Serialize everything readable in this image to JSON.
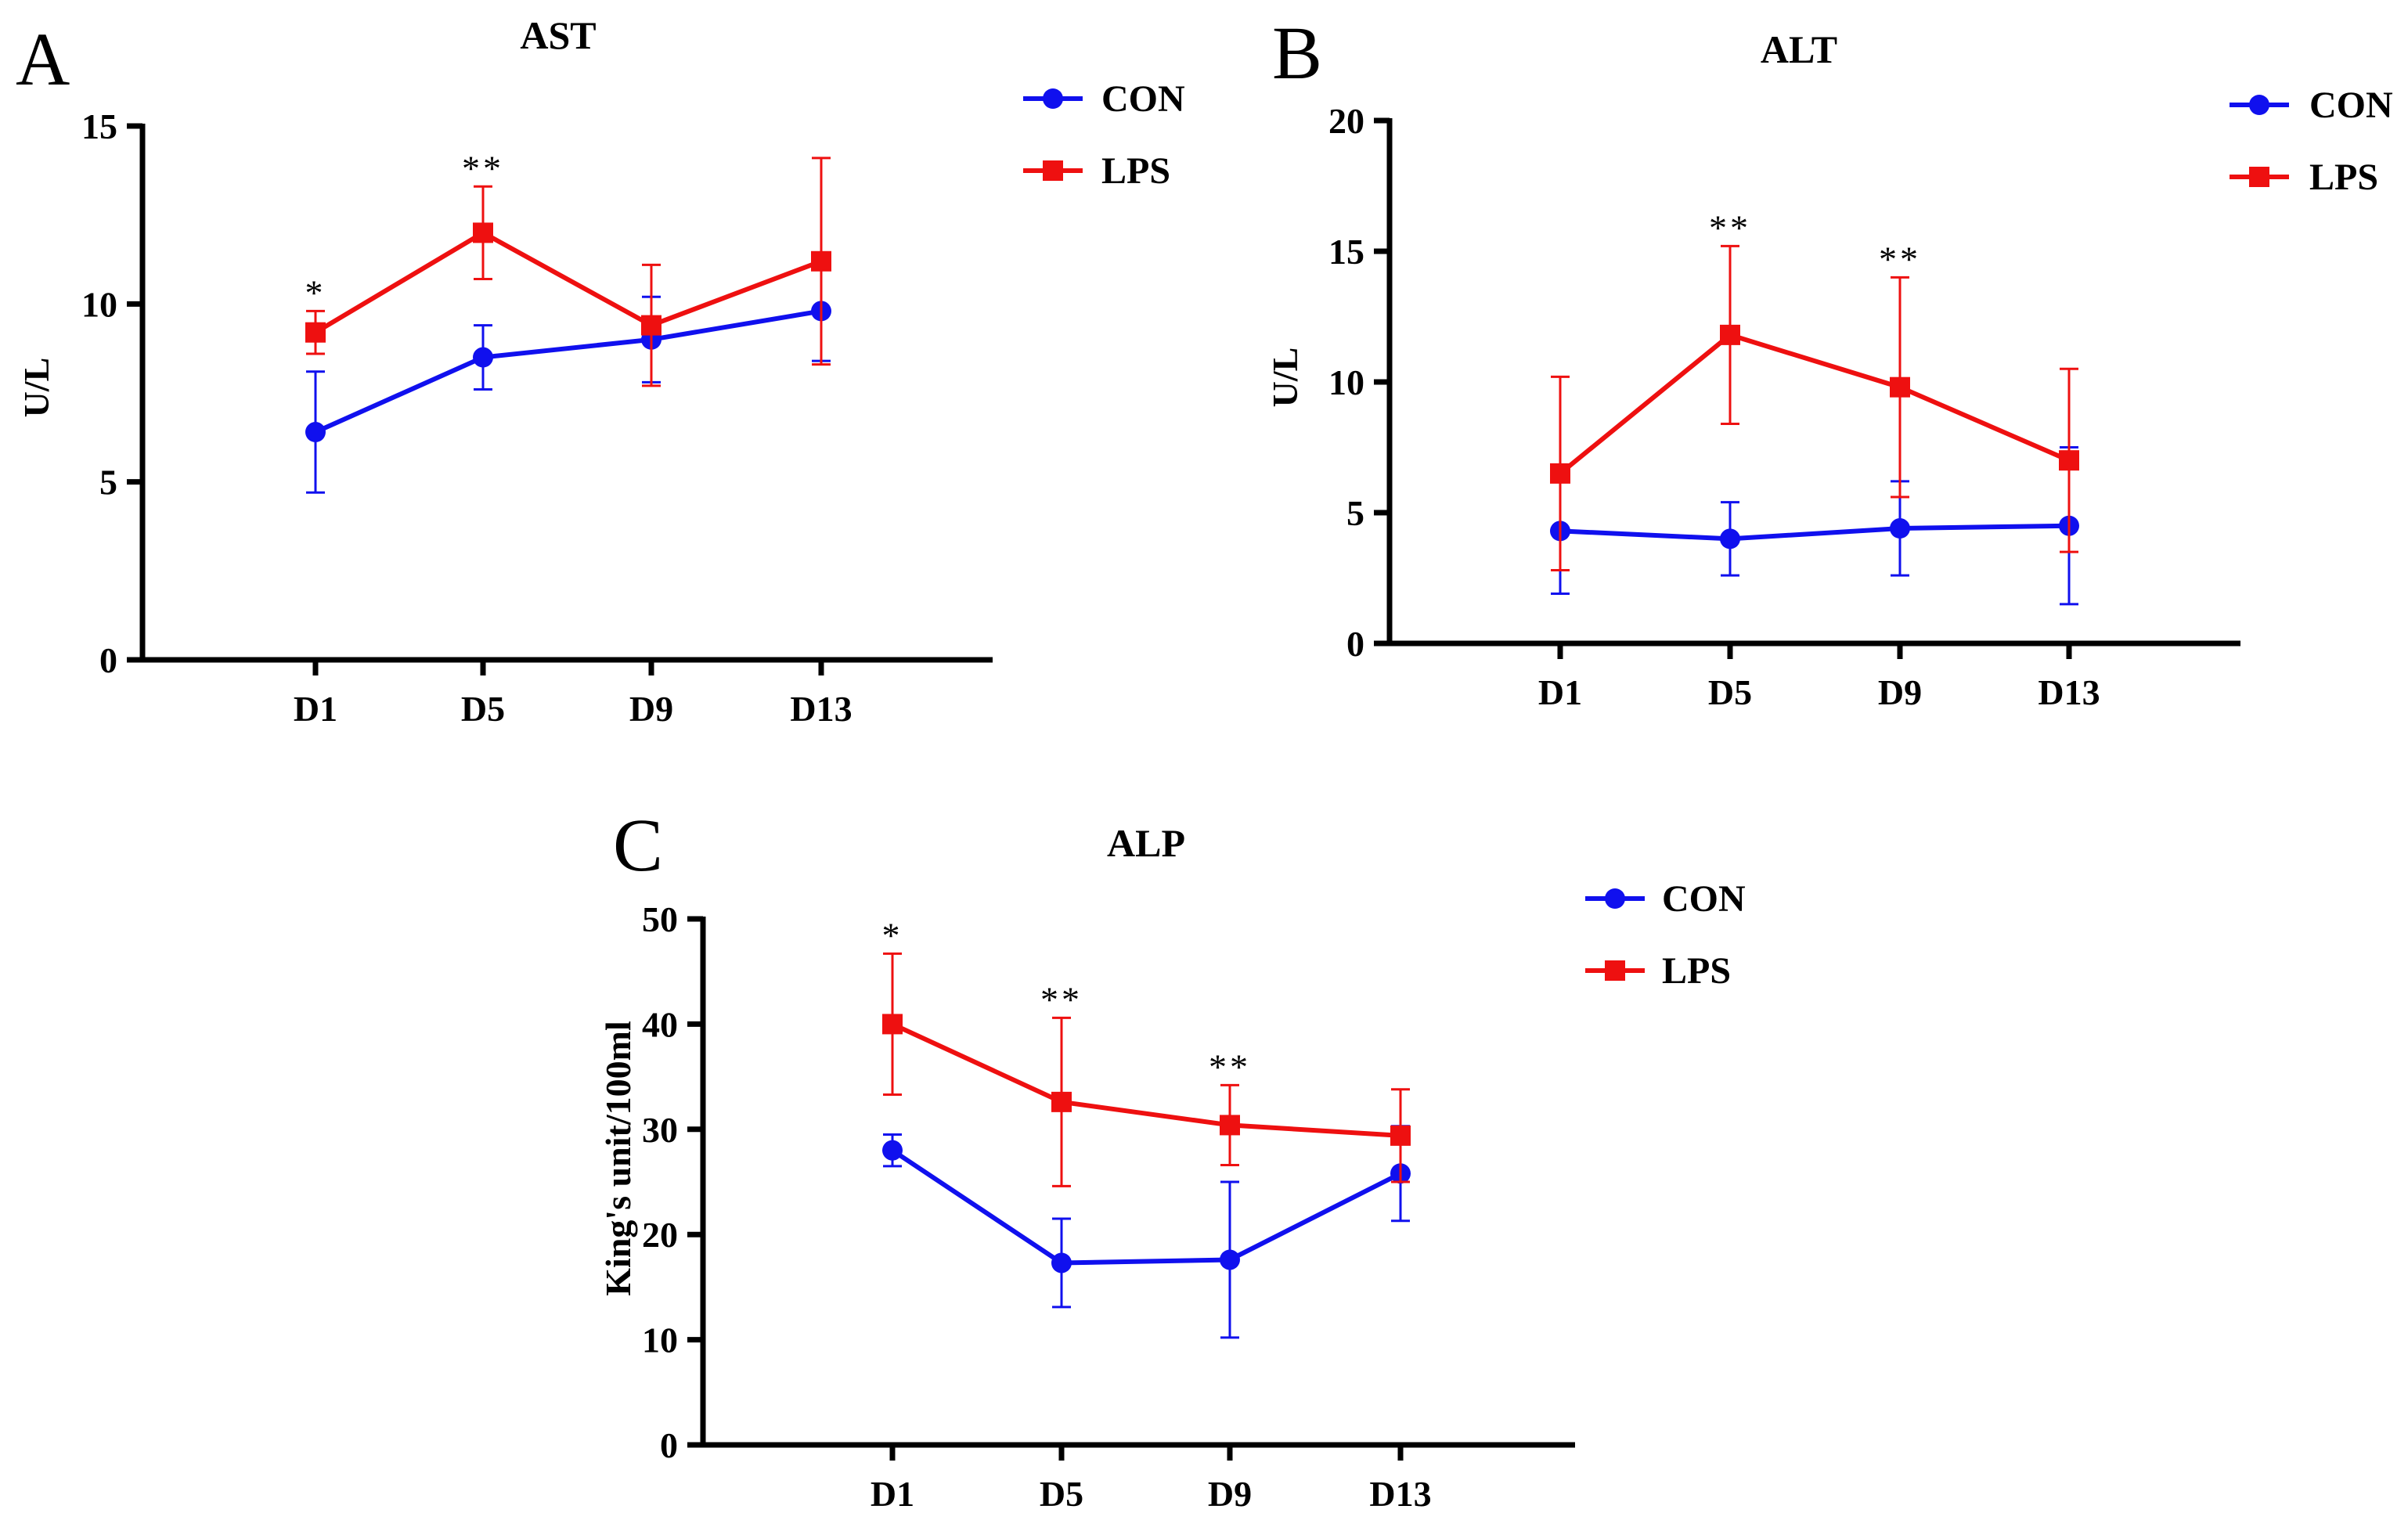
{
  "colors": {
    "con": "#1010ee",
    "lps": "#ee1010",
    "axis": "#000000"
  },
  "chart_data": [
    {
      "panel": "A",
      "type": "line",
      "title": "AST",
      "xlabel": "",
      "ylabel": "U/L",
      "ylim": [
        0,
        15
      ],
      "yticks": [
        0,
        5,
        10,
        15
      ],
      "ytick_labels": [
        "0",
        "5",
        "10",
        "15"
      ],
      "categories": [
        "D1",
        "D5",
        "D9",
        "D13"
      ],
      "legend_position": "top-right",
      "series": [
        {
          "name": "CON",
          "marker": "circle",
          "values": [
            6.4,
            8.5,
            9.0,
            9.8
          ],
          "err_low": [
            1.7,
            0.9,
            1.2,
            1.4
          ],
          "err_high": [
            1.7,
            0.9,
            1.2,
            1.4
          ]
        },
        {
          "name": "LPS",
          "marker": "square",
          "values": [
            9.2,
            12.0,
            9.4,
            11.2
          ],
          "err_low": [
            0.6,
            1.3,
            1.7,
            2.9
          ],
          "err_high": [
            0.6,
            1.3,
            1.7,
            2.9
          ]
        }
      ],
      "significance": [
        "*",
        "**",
        "",
        ""
      ]
    },
    {
      "panel": "B",
      "type": "line",
      "title": "ALT",
      "xlabel": "",
      "ylabel": "U/L",
      "ylim": [
        0,
        20
      ],
      "yticks": [
        0,
        5,
        10,
        15,
        20
      ],
      "ytick_labels": [
        "0",
        "5",
        "10",
        "15",
        "20"
      ],
      "categories": [
        "D1",
        "D5",
        "D9",
        "D13"
      ],
      "legend_position": "top-right",
      "series": [
        {
          "name": "CON",
          "marker": "circle",
          "values": [
            4.3,
            4.0,
            4.4,
            4.5
          ],
          "err_low": [
            2.4,
            1.4,
            1.8,
            3.0
          ],
          "err_high": [
            2.4,
            1.4,
            1.8,
            3.0
          ]
        },
        {
          "name": "LPS",
          "marker": "square",
          "values": [
            6.5,
            11.8,
            9.8,
            7.0
          ],
          "err_low": [
            3.7,
            3.4,
            4.2,
            3.5
          ],
          "err_high": [
            3.7,
            3.4,
            4.2,
            3.5
          ]
        }
      ],
      "significance": [
        "",
        "**",
        "**",
        ""
      ]
    },
    {
      "panel": "C",
      "type": "line",
      "title": "ALP",
      "xlabel": "",
      "ylabel": "King's unit/100ml",
      "ylim": [
        0,
        50
      ],
      "yticks": [
        0,
        10,
        20,
        30,
        40,
        50
      ],
      "ytick_labels": [
        "0",
        "10",
        "20",
        "30",
        "40",
        "50"
      ],
      "categories": [
        "D1",
        "D5",
        "D9",
        "D13"
      ],
      "legend_position": "top-right",
      "series": [
        {
          "name": "CON",
          "marker": "circle",
          "values": [
            28.0,
            17.3,
            17.6,
            25.8
          ],
          "err_low": [
            1.5,
            4.2,
            7.4,
            4.5
          ],
          "err_high": [
            1.5,
            4.2,
            7.4,
            4.5
          ]
        },
        {
          "name": "LPS",
          "marker": "square",
          "values": [
            40.0,
            32.6,
            30.4,
            29.4
          ],
          "err_low": [
            6.7,
            8.0,
            3.8,
            4.4
          ],
          "err_high": [
            6.7,
            8.0,
            3.8,
            4.4
          ]
        }
      ],
      "significance": [
        "*",
        "**",
        "**",
        ""
      ]
    }
  ]
}
